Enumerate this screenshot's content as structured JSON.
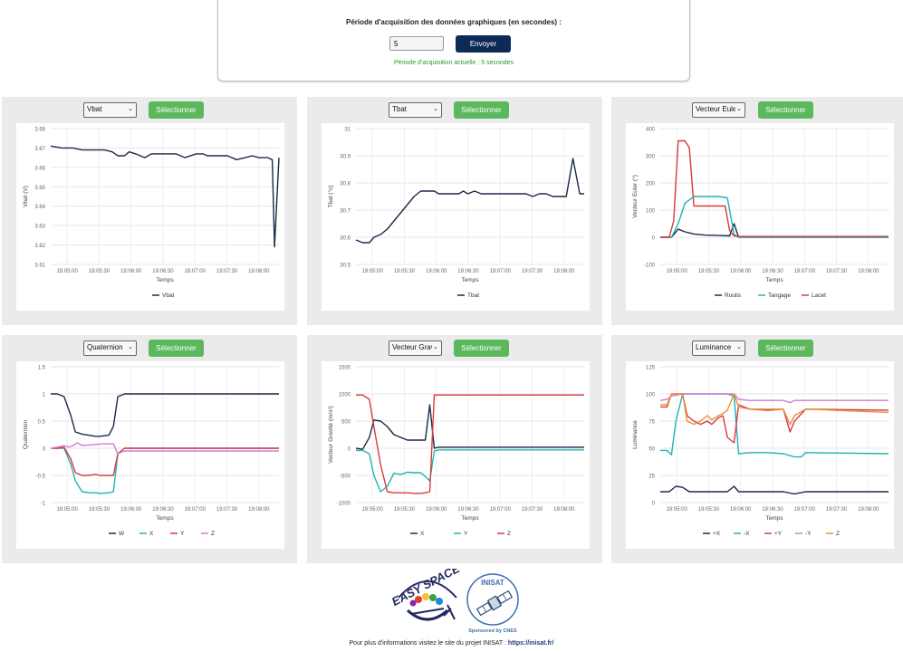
{
  "acquisition": {
    "title": "Période d'acquisition des données graphiques (en secondes) :",
    "input_value": "5",
    "send_label": "Envoyer",
    "status": "Période d'acquisition actuelle : 5 secondes"
  },
  "panels": [
    {
      "select": "Vbat",
      "button": "Sélectionner"
    },
    {
      "select": "Tbat",
      "button": "Sélectionner"
    },
    {
      "select": "Vecteur Euler",
      "button": "Sélectionner"
    },
    {
      "select": "Quaternion",
      "button": "Sélectionner"
    },
    {
      "select": "Vecteur Gravité",
      "button": "Sélectionner"
    },
    {
      "select": "Luminance",
      "button": "Sélectionner"
    }
  ],
  "footer": {
    "text": "Pour plus d'informations visitez le site du projet INISAT : ",
    "link": "https://inisat.fr/",
    "logo1": "EASY SPACE",
    "logo2": "INISAT",
    "logo2_sub": "Sponsored by CNES"
  },
  "chart_data": [
    {
      "type": "line",
      "ylabel": "Vbat (V)",
      "xlabel": "Temps",
      "ylim": [
        3.61,
        3.68
      ],
      "yticks": [
        "3.68",
        "3.67",
        "3.66",
        "3.65",
        "3.64",
        "3.63",
        "3.62",
        "3.61"
      ],
      "xticks": [
        "19:05:00",
        "19:05:30",
        "19:06:00",
        "19:06:30",
        "19:07:00",
        "19:07:30",
        "19:08:00"
      ],
      "x_range": [
        0,
        204
      ],
      "series": [
        {
          "name": "Vbat",
          "color": "#1b2a4a",
          "x": [
            0,
            10,
            20,
            28,
            34,
            42,
            48,
            55,
            60,
            66,
            70,
            76,
            84,
            90,
            96,
            100,
            106,
            112,
            120,
            130,
            136,
            140,
            146,
            150,
            158,
            166,
            174,
            180,
            186,
            194,
            198,
            200,
            204
          ],
          "y": [
            3.671,
            3.67,
            3.67,
            3.669,
            3.669,
            3.669,
            3.669,
            3.668,
            3.666,
            3.666,
            3.668,
            3.667,
            3.665,
            3.667,
            3.667,
            3.667,
            3.667,
            3.667,
            3.665,
            3.667,
            3.667,
            3.666,
            3.666,
            3.666,
            3.666,
            3.664,
            3.665,
            3.666,
            3.665,
            3.665,
            3.664,
            3.619,
            3.665
          ]
        }
      ]
    },
    {
      "type": "line",
      "ylabel": "Tbat (°c)",
      "xlabel": "Temps",
      "ylim": [
        30.5,
        31
      ],
      "yticks": [
        "31",
        "30.9",
        "30.8",
        "30.7",
        "30.6",
        "30.5"
      ],
      "xticks": [
        "19:05:00",
        "19:05:30",
        "19:06:00",
        "19:06:30",
        "19:07:00",
        "19:07:30",
        "19:08:00"
      ],
      "x_range": [
        0,
        204
      ],
      "series": [
        {
          "name": "Tbat",
          "color": "#1b2a4a",
          "x": [
            0,
            6,
            12,
            16,
            22,
            28,
            34,
            40,
            46,
            52,
            58,
            62,
            66,
            70,
            74,
            80,
            86,
            92,
            96,
            100,
            106,
            112,
            118,
            124,
            130,
            136,
            140,
            146,
            152,
            158,
            164,
            170,
            176,
            182,
            188,
            194,
            200,
            204
          ],
          "y": [
            30.59,
            30.58,
            30.58,
            30.6,
            30.61,
            30.63,
            30.66,
            30.69,
            30.72,
            30.75,
            30.77,
            30.77,
            30.77,
            30.77,
            30.76,
            30.76,
            30.76,
            30.76,
            30.77,
            30.76,
            30.77,
            30.76,
            30.76,
            30.76,
            30.76,
            30.76,
            30.76,
            30.76,
            30.76,
            30.75,
            30.76,
            30.76,
            30.75,
            30.75,
            30.75,
            30.89,
            30.76,
            30.76
          ]
        }
      ]
    },
    {
      "type": "line",
      "ylabel": "Vecteur Euler (°)",
      "xlabel": "Temps",
      "ylim": [
        -100,
        400
      ],
      "yticks": [
        "400",
        "300",
        "200",
        "100",
        "0",
        "-100"
      ],
      "xticks": [
        "19:05:00",
        "19:05:30",
        "19:06:00",
        "19:06:30",
        "19:07:00",
        "19:07:30",
        "19:08:00"
      ],
      "x_range": [
        0,
        204
      ],
      "series": [
        {
          "name": "Roulis",
          "color": "#1b2a4a",
          "x": [
            0,
            10,
            16,
            22,
            30,
            40,
            52,
            62,
            66,
            70,
            74,
            204
          ],
          "y": [
            0,
            0,
            30,
            20,
            12,
            8,
            7,
            5,
            50,
            0,
            0,
            0
          ]
        },
        {
          "name": "Tangage",
          "color": "#22b2b2",
          "x": [
            0,
            10,
            16,
            22,
            30,
            40,
            52,
            60,
            66,
            70,
            74,
            204
          ],
          "y": [
            0,
            0,
            50,
            125,
            150,
            150,
            150,
            145,
            10,
            0,
            0,
            0
          ]
        },
        {
          "name": "Lacet",
          "color": "#d93a3a",
          "x": [
            0,
            8,
            12,
            16,
            22,
            26,
            30,
            40,
            52,
            58,
            62,
            66,
            70,
            74,
            204
          ],
          "y": [
            0,
            0,
            60,
            355,
            355,
            330,
            115,
            115,
            115,
            115,
            25,
            5,
            3,
            3,
            3
          ]
        }
      ]
    },
    {
      "type": "line",
      "ylabel": "Quaternion",
      "xlabel": "Temps",
      "ylim": [
        -1,
        1.5
      ],
      "yticks": [
        "1.5",
        "1",
        "0.5",
        "0",
        "-0.5",
        "-1"
      ],
      "xticks": [
        "19:05:00",
        "19:05:30",
        "19:06:00",
        "19:06:30",
        "19:07:00",
        "19:07:30",
        "19:08:00"
      ],
      "x_range": [
        0,
        204
      ],
      "series": [
        {
          "name": "W",
          "color": "#1b2a4a",
          "x": [
            0,
            6,
            12,
            18,
            22,
            28,
            34,
            40,
            44,
            52,
            56,
            60,
            66,
            70,
            74,
            204
          ],
          "y": [
            1,
            1,
            0.95,
            0.6,
            0.3,
            0.26,
            0.24,
            0.22,
            0.22,
            0.24,
            0.4,
            0.95,
            1,
            1,
            1,
            1
          ]
        },
        {
          "name": "X",
          "color": "#22b2b2",
          "x": [
            0,
            6,
            12,
            18,
            22,
            28,
            34,
            40,
            44,
            52,
            56,
            60,
            66,
            70,
            74,
            204
          ],
          "y": [
            0,
            0,
            0,
            -0.3,
            -0.6,
            -0.8,
            -0.82,
            -0.82,
            -0.83,
            -0.82,
            -0.8,
            -0.1,
            0,
            0,
            0,
            0
          ]
        },
        {
          "name": "Y",
          "color": "#d93a3a",
          "x": [
            0,
            6,
            12,
            18,
            22,
            28,
            34,
            40,
            44,
            52,
            56,
            60,
            66,
            70,
            74,
            204
          ],
          "y": [
            0,
            0,
            0.02,
            -0.2,
            -0.45,
            -0.5,
            -0.5,
            -0.48,
            -0.5,
            -0.5,
            -0.5,
            -0.1,
            0,
            0,
            0,
            0
          ]
        },
        {
          "name": "Z",
          "color": "#d27bd6",
          "x": [
            0,
            6,
            12,
            16,
            20,
            24,
            28,
            34,
            40,
            46,
            52,
            56,
            60,
            66,
            70,
            74,
            204
          ],
          "y": [
            0,
            0.02,
            0.05,
            0.02,
            0.05,
            0.1,
            0.05,
            0.06,
            0.07,
            0.08,
            0.08,
            0.08,
            -0.1,
            -0.05,
            -0.05,
            -0.05,
            -0.05
          ]
        }
      ]
    },
    {
      "type": "line",
      "ylabel": "Vecteur Gravité (m/s²)",
      "xlabel": "Temps",
      "ylim": [
        -1000,
        1500
      ],
      "yticks": [
        "1500",
        "1000",
        "500",
        "0",
        "-500",
        "-1000"
      ],
      "xticks": [
        "19:05:00",
        "19:05:30",
        "19:06:00",
        "19:06:30",
        "19:07:00",
        "19:07:30",
        "19:08:00"
      ],
      "x_range": [
        0,
        204
      ],
      "series": [
        {
          "name": "X",
          "color": "#1b2a4a",
          "x": [
            0,
            6,
            12,
            16,
            22,
            28,
            34,
            40,
            46,
            52,
            58,
            62,
            66,
            70,
            74,
            204
          ],
          "y": [
            0,
            -20,
            200,
            520,
            500,
            400,
            250,
            200,
            150,
            150,
            150,
            150,
            800,
            0,
            20,
            20
          ]
        },
        {
          "name": "Y",
          "color": "#22b2b2",
          "x": [
            0,
            6,
            12,
            16,
            22,
            28,
            34,
            40,
            46,
            52,
            58,
            62,
            66,
            70,
            74,
            204
          ],
          "y": [
            -40,
            -40,
            -100,
            -500,
            -800,
            -700,
            -460,
            -480,
            -440,
            -450,
            -450,
            -520,
            -600,
            -50,
            -30,
            -30
          ]
        },
        {
          "name": "Z",
          "color": "#d93a3a",
          "x": [
            0,
            6,
            12,
            16,
            22,
            28,
            34,
            40,
            46,
            52,
            58,
            62,
            66,
            70,
            74,
            204
          ],
          "y": [
            980,
            980,
            900,
            400,
            -300,
            -800,
            -820,
            -820,
            -820,
            -830,
            -830,
            -820,
            -800,
            980,
            980,
            980
          ]
        }
      ]
    },
    {
      "type": "line",
      "ylabel": "Luminance",
      "xlabel": "Temps",
      "ylim": [
        0,
        125
      ],
      "yticks": [
        "125",
        "100",
        "75",
        "50",
        "25",
        "0"
      ],
      "xticks": [
        "19:05:00",
        "19:05:30",
        "19:06:00",
        "19:06:30",
        "19:07:00",
        "19:07:30",
        "19:08:00"
      ],
      "x_range": [
        0,
        204
      ],
      "series": [
        {
          "name": "+X",
          "color": "#1b2a4a",
          "x": [
            0,
            8,
            14,
            20,
            26,
            30,
            40,
            50,
            60,
            66,
            70,
            80,
            96,
            110,
            120,
            130,
            204
          ],
          "y": [
            10,
            10,
            15,
            14,
            10,
            10,
            10,
            10,
            10,
            15,
            10,
            10,
            10,
            10,
            8,
            10,
            10
          ]
        },
        {
          "name": "-X",
          "color": "#22b2b2",
          "x": [
            0,
            6,
            10,
            14,
            20,
            24,
            30,
            40,
            50,
            60,
            66,
            70,
            80,
            96,
            110,
            120,
            126,
            130,
            204
          ],
          "y": [
            48,
            48,
            44,
            75,
            100,
            100,
            100,
            100,
            100,
            100,
            98,
            45,
            46,
            46,
            45,
            42,
            42,
            46,
            45
          ]
        },
        {
          "name": "+Y",
          "color": "#d93a3a",
          "x": [
            0,
            6,
            10,
            14,
            20,
            24,
            30,
            36,
            42,
            46,
            52,
            56,
            60,
            66,
            70,
            80,
            96,
            110,
            116,
            120,
            130,
            204
          ],
          "y": [
            88,
            88,
            100,
            100,
            100,
            80,
            75,
            72,
            75,
            72,
            78,
            80,
            60,
            55,
            90,
            86,
            85,
            86,
            65,
            75,
            86,
            85
          ]
        },
        {
          "name": "-Y",
          "color": "#d27bd6",
          "x": [
            0,
            6,
            10,
            20,
            30,
            40,
            50,
            60,
            66,
            70,
            80,
            96,
            110,
            116,
            120,
            130,
            204
          ],
          "y": [
            94,
            95,
            98,
            100,
            100,
            100,
            100,
            100,
            100,
            95,
            94,
            94,
            94,
            92,
            94,
            94,
            94
          ]
        },
        {
          "name": "Z",
          "color": "#e8913a",
          "x": [
            0,
            6,
            10,
            14,
            20,
            24,
            30,
            36,
            42,
            46,
            52,
            56,
            60,
            66,
            70,
            80,
            96,
            110,
            116,
            120,
            130,
            204
          ],
          "y": [
            90,
            90,
            100,
            100,
            100,
            75,
            72,
            75,
            80,
            76,
            80,
            82,
            85,
            100,
            88,
            86,
            86,
            86,
            72,
            80,
            86,
            83
          ]
        }
      ]
    }
  ]
}
